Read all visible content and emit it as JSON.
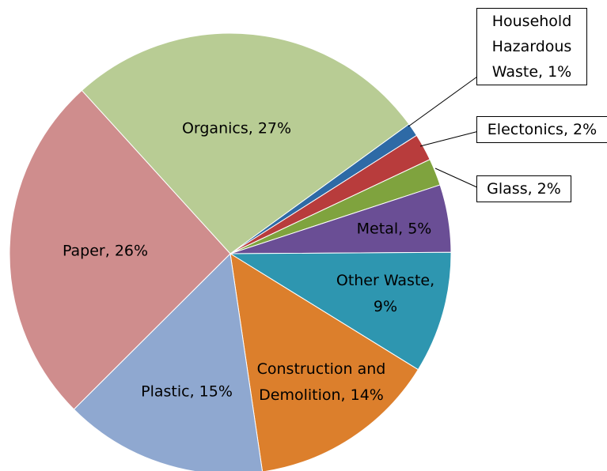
{
  "chart_data": {
    "type": "pie",
    "values": [
      1,
      2,
      2,
      5,
      9,
      14,
      15,
      26,
      27
    ],
    "value_labels": [
      "Household Hazardous Waste, 1%",
      "Electonics, 2%",
      "Glass, 2%",
      "Metal, 5%",
      "Other Waste, 9%",
      "Construction and Demolition, 14%",
      "Plastic, 15%",
      "Paper, 26%",
      "Organics, 27%"
    ],
    "colors": [
      "#2e6aa6",
      "#b83c3c",
      "#7fa33e",
      "#6a4e95",
      "#2e96b0",
      "#dc7f2c",
      "#8fa8d0",
      "#cf8d8d",
      "#b8cc94"
    ]
  }
}
